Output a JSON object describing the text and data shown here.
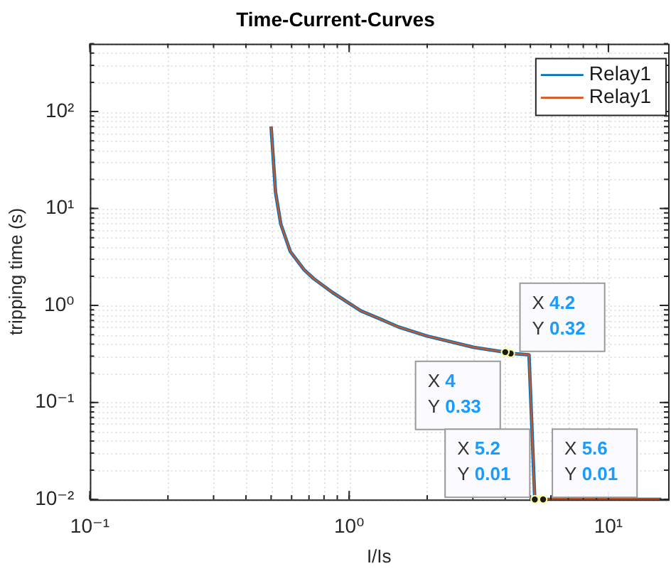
{
  "chart_data": {
    "type": "line",
    "title": "Time-Current-Curves",
    "xlabel": "I/Is",
    "ylabel": "tripping time (s)",
    "log": "xy",
    "grid": true,
    "legend": "top right",
    "marker": "none",
    "line_style": "solid",
    "xlim": [
      0.1,
      17
    ],
    "xticks": [
      {
        "value": 0.1,
        "label": "10⁻¹"
      },
      {
        "value": 1,
        "label": "10⁰"
      },
      {
        "value": 10,
        "label": "10¹"
      }
    ],
    "ylim": [
      0.01,
      500
    ],
    "yticks": [
      {
        "value": 0.01,
        "label": "10⁻²"
      },
      {
        "value": 0.1,
        "label": "10⁻¹"
      },
      {
        "value": 1,
        "label": "10⁰"
      },
      {
        "value": 10,
        "label": "10¹"
      },
      {
        "value": 100,
        "label": "10²"
      }
    ],
    "x": [
      0.5,
      0.52,
      0.545,
      0.593,
      0.67,
      0.73,
      0.863,
      1.11,
      1.31,
      1.55,
      1.99,
      3.03,
      4,
      4.2,
      4.94,
      5.2,
      5.6,
      16
    ],
    "series": [
      {
        "name": "Relay1",
        "color": "#0072bd",
        "values": [
          70,
          14.8,
          6.9,
          3.6,
          2.34,
          1.89,
          1.36,
          0.88,
          0.73,
          0.6,
          0.485,
          0.37,
          0.33,
          0.32,
          0.31,
          0.01,
          0.01,
          0.01
        ]
      },
      {
        "name": "Relay1",
        "color": "#d95319",
        "values": [
          70,
          14.8,
          6.9,
          3.6,
          2.34,
          1.89,
          1.36,
          0.88,
          0.73,
          0.6,
          0.485,
          0.37,
          0.33,
          0.32,
          0.31,
          0.01,
          0.01,
          0.01
        ]
      }
    ],
    "annotations": [
      {
        "text": "X 4.2\nY 0.32",
        "x": 4.2,
        "y": 0.32
      },
      {
        "text": "X 4\nY 0.33",
        "x": 4,
        "y": 0.33
      },
      {
        "text": "X 5.2\nY 0.01",
        "x": 5.2,
        "y": 0.01
      },
      {
        "text": "X 5.6\nY 0.01",
        "x": 5.6,
        "y": 0.01
      }
    ]
  }
}
